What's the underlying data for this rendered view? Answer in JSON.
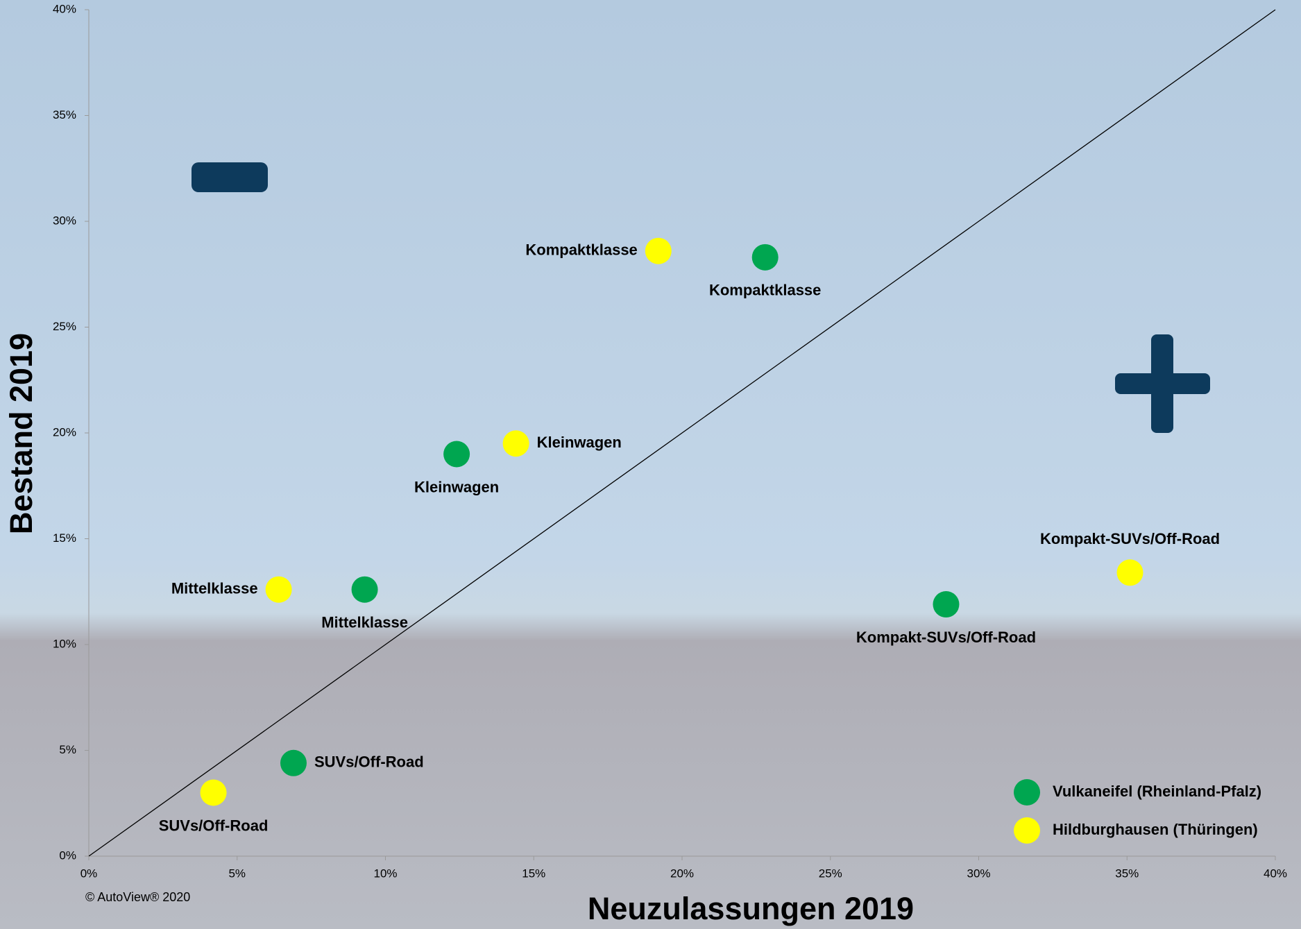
{
  "chart_data": {
    "type": "scatter",
    "xlabel": "Neuzulassungen 2019",
    "ylabel": "Bestand 2019",
    "xlim": [
      0,
      40
    ],
    "ylim": [
      0,
      40
    ],
    "xticks": [
      {
        "value": 0,
        "label": "0%"
      },
      {
        "value": 5,
        "label": "5%"
      },
      {
        "value": 10,
        "label": "10%"
      },
      {
        "value": 15,
        "label": "15%"
      },
      {
        "value": 20,
        "label": "20%"
      },
      {
        "value": 25,
        "label": "25%"
      },
      {
        "value": 30,
        "label": "30%"
      },
      {
        "value": 35,
        "label": "35%"
      },
      {
        "value": 40,
        "label": "40%"
      }
    ],
    "yticks": [
      {
        "value": 0,
        "label": "0%"
      },
      {
        "value": 5,
        "label": "5%"
      },
      {
        "value": 10,
        "label": "10%"
      },
      {
        "value": 15,
        "label": "15%"
      },
      {
        "value": 20,
        "label": "20%"
      },
      {
        "value": 25,
        "label": "25%"
      },
      {
        "value": 30,
        "label": "30%"
      },
      {
        "value": 35,
        "label": "35%"
      },
      {
        "value": 40,
        "label": "40%"
      }
    ],
    "series": [
      {
        "name": "Vulkaneifel (Rheinland-Pfalz)",
        "color": "#00a650",
        "labels": [
          "Kompaktklasse",
          "Kleinwagen",
          "Mittelklasse",
          "SUVs/Off-Road",
          "Kompakt-SUVs/Off-Road"
        ],
        "x": [
          22.8,
          12.4,
          9.3,
          6.9,
          28.9
        ],
        "values": [
          28.3,
          19.0,
          12.6,
          4.4,
          11.9
        ]
      },
      {
        "name": "Hildburghausen (Thüringen)",
        "color": "#ffff00",
        "labels": [
          "Kompaktklasse",
          "Kleinwagen",
          "Mittelklasse",
          "SUVs/Off-Road",
          "Kompakt-SUVs/Off-Road"
        ],
        "x": [
          19.2,
          14.4,
          6.4,
          4.2,
          35.1
        ],
        "values": [
          28.6,
          19.5,
          12.6,
          3.0,
          13.4
        ]
      }
    ],
    "footnote": "© AutoView® 2020"
  }
}
